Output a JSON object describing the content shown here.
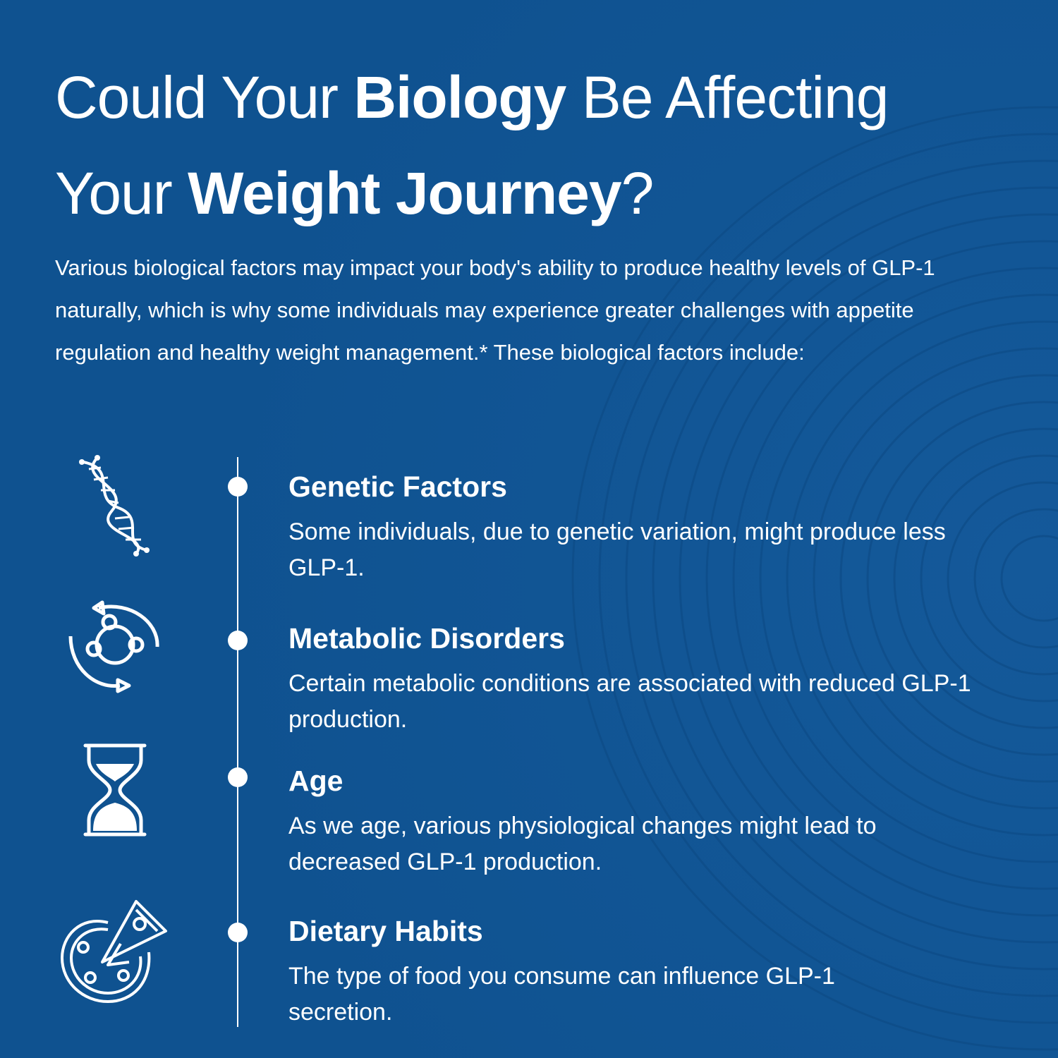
{
  "title": {
    "line1_pre": "Could Your ",
    "line1_bold": "Biology",
    "line1_post": " Be Affecting",
    "line2_pre": "Your ",
    "line2_bold": "Weight Journey",
    "line2_post": "?"
  },
  "intro": "Various biological factors may impact your body's ability to produce healthy levels of GLP-1 naturally, which is why some individuals may experience greater challenges with appetite regulation and healthy weight management.* These biological factors include:",
  "colors": {
    "background": "#0f5290",
    "text": "#ffffff"
  },
  "factors": [
    {
      "icon": "dna-icon",
      "heading": "Genetic Factors",
      "text": "Some individuals, due to genetic variation, might produce less GLP-1."
    },
    {
      "icon": "metabolism-cycle-icon",
      "heading": "Metabolic Disorders",
      "text": "Certain metabolic conditions are associated with reduced GLP-1 production."
    },
    {
      "icon": "hourglass-icon",
      "heading": "Age",
      "text": "As we age, various physiological changes might lead to decreased GLP-1 production."
    },
    {
      "icon": "pizza-icon",
      "heading": "Dietary Habits",
      "text": "The type of food you consume can influence GLP-1 secretion."
    }
  ]
}
